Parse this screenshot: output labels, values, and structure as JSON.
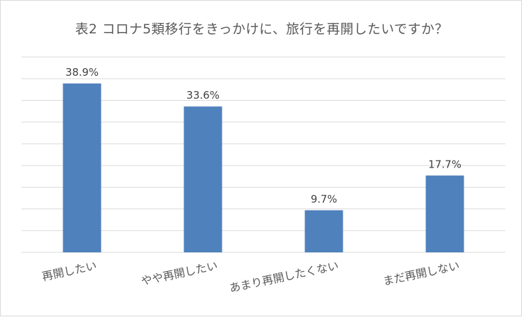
{
  "chart_data": {
    "type": "bar",
    "title": "表2 コロナ5類移行をきっかけに、旅行を再開したいですか？",
    "categories": [
      "再開したい",
      "やや再開したい",
      "あまり再開したくない",
      "まだ再開しない"
    ],
    "values": [
      38.9,
      33.6,
      9.7,
      17.7
    ],
    "data_labels": [
      "38.9%",
      "33.6%",
      "9.7%",
      "17.7%"
    ],
    "xlabel": "",
    "ylabel": "",
    "ylim": [
      0,
      45
    ],
    "grid": true,
    "legend": "none",
    "colors": {
      "bar": "#4f81bd",
      "gridline": "#d9d9d9",
      "text": "#595959"
    }
  }
}
